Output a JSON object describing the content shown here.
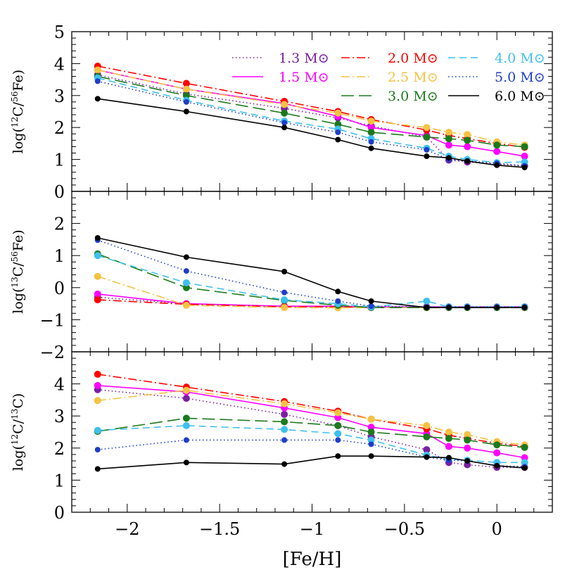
{
  "figure": {
    "xlabel": "[Fe/H]",
    "x_ticks": [
      -2,
      -1.5,
      -1,
      -0.5,
      0
    ],
    "x_tick_labels": [
      "−2",
      "−1.5",
      "−1",
      "−0.5",
      "0"
    ],
    "legend_unit": "M⊙"
  },
  "chart_data": [
    {
      "type": "line",
      "panel": "top",
      "ylabel_parts": [
        "log(",
        "12",
        "C/",
        "56",
        "Fe)"
      ],
      "xlim": [
        -2.3,
        0.3
      ],
      "ylim": [
        0,
        5
      ],
      "y_ticks": [
        0,
        1,
        2,
        3,
        4,
        5
      ],
      "y_tick_labels": [
        "0",
        "1",
        "2",
        "3",
        "4",
        "5"
      ],
      "x": [
        -2.16,
        -1.68,
        -1.15,
        -0.86,
        -0.68,
        -0.38,
        -0.26,
        -0.16,
        0.0,
        0.15
      ],
      "series": [
        {
          "name": "1.3 M⊙",
          "color": "#7b1fa2",
          "dash": "dotted",
          "marker_size": 5,
          "values": [
            3.65,
            3.05,
            2.6,
            2.3,
            2.05,
            1.7,
            0.98,
            0.92,
            0.85,
            0.8
          ]
        },
        {
          "name": "1.5 M⊙",
          "color": "#ff00ff",
          "dash": "solid",
          "marker_size": 5,
          "values": [
            3.8,
            3.2,
            2.75,
            2.35,
            2.0,
            1.75,
            1.45,
            1.4,
            1.25,
            1.1
          ]
        },
        {
          "name": "2.0 M⊙",
          "color": "#ff0000",
          "dash": "dashdot",
          "marker_size": 5,
          "values": [
            3.92,
            3.38,
            2.82,
            2.5,
            2.25,
            1.92,
            1.75,
            1.65,
            1.5,
            1.38
          ]
        },
        {
          "name": "2.5 M⊙",
          "color": "#f5c242",
          "dash": "dashdot",
          "marker_size": 5,
          "values": [
            3.8,
            3.2,
            2.72,
            2.45,
            2.2,
            2.0,
            1.85,
            1.78,
            1.55,
            1.45
          ]
        },
        {
          "name": "3.0 M⊙",
          "color": "#1b7a1b",
          "dash": "longdash",
          "marker_size": 5,
          "values": [
            3.6,
            3.0,
            2.45,
            2.1,
            1.85,
            1.7,
            1.65,
            1.6,
            1.45,
            1.4
          ]
        },
        {
          "name": "4.0 M⊙",
          "color": "#3fc0ee",
          "dash": "dashed",
          "marker_size": 5,
          "values": [
            3.55,
            2.85,
            2.2,
            1.95,
            1.65,
            1.35,
            1.1,
            1.0,
            0.9,
            0.92
          ]
        },
        {
          "name": "5.0 M⊙",
          "color": "#1e3ec8",
          "dash": "dotted",
          "marker_size": 4,
          "values": [
            3.45,
            2.8,
            2.15,
            1.85,
            1.55,
            1.3,
            1.0,
            0.95,
            0.88,
            0.8
          ]
        },
        {
          "name": "6.0 M⊙",
          "color": "#000000",
          "dash": "solid",
          "marker_size": 4,
          "values": [
            2.9,
            2.5,
            2.0,
            1.62,
            1.35,
            1.1,
            1.05,
            0.95,
            0.82,
            0.75
          ]
        }
      ]
    },
    {
      "type": "line",
      "panel": "middle",
      "ylabel_parts": [
        "log(",
        "13",
        "C/",
        "56",
        "Fe)"
      ],
      "xlim": [
        -2.3,
        0.3
      ],
      "ylim": [
        -2,
        3
      ],
      "y_ticks": [
        -2,
        -1,
        0,
        1,
        2
      ],
      "y_tick_labels": [
        "−2",
        "−1",
        "0",
        "1",
        "2"
      ],
      "x": [
        -2.16,
        -1.68,
        -1.15,
        -0.86,
        -0.68,
        -0.38,
        -0.26,
        -0.16,
        0.0,
        0.15
      ],
      "series": [
        {
          "name": "1.3 M⊙",
          "color": "#7b1fa2",
          "dash": "dotted",
          "marker_size": 5,
          "values": [
            -0.3,
            -0.5,
            -0.58,
            -0.6,
            -0.6,
            -0.6,
            -0.6,
            -0.6,
            -0.6,
            -0.6
          ]
        },
        {
          "name": "1.5 M⊙",
          "color": "#ff00ff",
          "dash": "solid",
          "marker_size": 5,
          "values": [
            -0.2,
            -0.5,
            -0.58,
            -0.58,
            -0.6,
            -0.6,
            -0.6,
            -0.6,
            -0.6,
            -0.6
          ]
        },
        {
          "name": "2.0 M⊙",
          "color": "#ff0000",
          "dash": "dashdot",
          "marker_size": 5,
          "values": [
            -0.38,
            -0.52,
            -0.6,
            -0.6,
            -0.62,
            -0.62,
            -0.62,
            -0.62,
            -0.62,
            -0.62
          ]
        },
        {
          "name": "2.5 M⊙",
          "color": "#f5c242",
          "dash": "dashdot",
          "marker_size": 5,
          "values": [
            0.35,
            -0.55,
            -0.62,
            -0.63,
            -0.62,
            -0.62,
            -0.62,
            -0.62,
            -0.62,
            -0.62
          ]
        },
        {
          "name": "3.0 M⊙",
          "color": "#1b7a1b",
          "dash": "longdash",
          "marker_size": 5,
          "values": [
            1.05,
            0.0,
            -0.4,
            -0.55,
            -0.62,
            -0.62,
            -0.62,
            -0.62,
            -0.62,
            -0.62
          ]
        },
        {
          "name": "4.0 M⊙",
          "color": "#3fc0ee",
          "dash": "dashed",
          "marker_size": 5,
          "values": [
            1.0,
            0.15,
            -0.38,
            -0.5,
            -0.6,
            -0.42,
            -0.6,
            -0.6,
            -0.6,
            -0.6
          ]
        },
        {
          "name": "5.0 M⊙",
          "color": "#1e3ec8",
          "dash": "dotted",
          "marker_size": 4,
          "values": [
            1.48,
            0.52,
            -0.15,
            -0.42,
            -0.58,
            -0.6,
            -0.6,
            -0.6,
            -0.6,
            -0.6
          ]
        },
        {
          "name": "6.0 M⊙",
          "color": "#000000",
          "dash": "solid",
          "marker_size": 4,
          "values": [
            1.55,
            0.95,
            0.5,
            -0.12,
            -0.42,
            -0.62,
            -0.62,
            -0.62,
            -0.62,
            -0.62
          ]
        }
      ]
    },
    {
      "type": "line",
      "panel": "bottom",
      "ylabel_parts": [
        "log(",
        "12",
        "C/",
        "13",
        "C)"
      ],
      "xlim": [
        -2.3,
        0.3
      ],
      "ylim": [
        0,
        5
      ],
      "y_ticks": [
        0,
        1,
        2,
        3,
        4
      ],
      "y_tick_labels": [
        "0",
        "1",
        "2",
        "3",
        "4"
      ],
      "x": [
        -2.16,
        -1.68,
        -1.15,
        -0.86,
        -0.68,
        -0.38,
        -0.26,
        -0.16,
        0.0,
        0.15
      ],
      "series": [
        {
          "name": "1.3 M⊙",
          "color": "#7b1fa2",
          "dash": "dotted",
          "marker_size": 5,
          "values": [
            3.82,
            3.55,
            3.05,
            2.7,
            2.35,
            1.95,
            1.55,
            1.48,
            1.4,
            1.4
          ]
        },
        {
          "name": "1.5 M⊙",
          "color": "#ff00ff",
          "dash": "solid",
          "marker_size": 5,
          "values": [
            3.95,
            3.75,
            3.25,
            2.95,
            2.65,
            2.45,
            2.05,
            2.0,
            1.85,
            1.7
          ]
        },
        {
          "name": "2.0 M⊙",
          "color": "#ff0000",
          "dash": "dashdot",
          "marker_size": 5,
          "values": [
            4.3,
            3.9,
            3.45,
            3.15,
            2.9,
            2.6,
            2.4,
            2.3,
            2.15,
            2.05
          ]
        },
        {
          "name": "2.5 M⊙",
          "color": "#f5c242",
          "dash": "dashdot",
          "marker_size": 5,
          "values": [
            3.48,
            3.8,
            3.38,
            3.1,
            2.9,
            2.7,
            2.5,
            2.42,
            2.2,
            2.1
          ]
        },
        {
          "name": "3.0 M⊙",
          "color": "#1b7a1b",
          "dash": "longdash",
          "marker_size": 5,
          "values": [
            2.52,
            2.93,
            2.82,
            2.7,
            2.5,
            2.35,
            2.3,
            2.25,
            2.1,
            2.02
          ]
        },
        {
          "name": "4.0 M⊙",
          "color": "#3fc0ee",
          "dash": "dashed",
          "marker_size": 5,
          "values": [
            2.55,
            2.7,
            2.58,
            2.45,
            2.25,
            1.78,
            1.65,
            1.62,
            1.55,
            1.55
          ]
        },
        {
          "name": "5.0 M⊙",
          "color": "#1e3ec8",
          "dash": "dotted",
          "marker_size": 4,
          "values": [
            1.95,
            2.25,
            2.25,
            2.25,
            2.12,
            1.72,
            1.62,
            1.6,
            1.45,
            1.42
          ]
        },
        {
          "name": "6.0 M⊙",
          "color": "#000000",
          "dash": "solid",
          "marker_size": 4,
          "values": [
            1.35,
            1.55,
            1.5,
            1.75,
            1.75,
            1.72,
            1.7,
            1.6,
            1.45,
            1.38
          ]
        }
      ]
    }
  ],
  "legend_order": [
    {
      "col": 0,
      "row": 0,
      "series": 0
    },
    {
      "col": 0,
      "row": 1,
      "series": 1
    },
    {
      "col": 1,
      "row": 0,
      "series": 2
    },
    {
      "col": 1,
      "row": 1,
      "series": 3
    },
    {
      "col": 1,
      "row": 2,
      "series": 4
    },
    {
      "col": 2,
      "row": 0,
      "series": 5
    },
    {
      "col": 2,
      "row": 1,
      "series": 6
    },
    {
      "col": 2,
      "row": 2,
      "series": 7
    }
  ]
}
